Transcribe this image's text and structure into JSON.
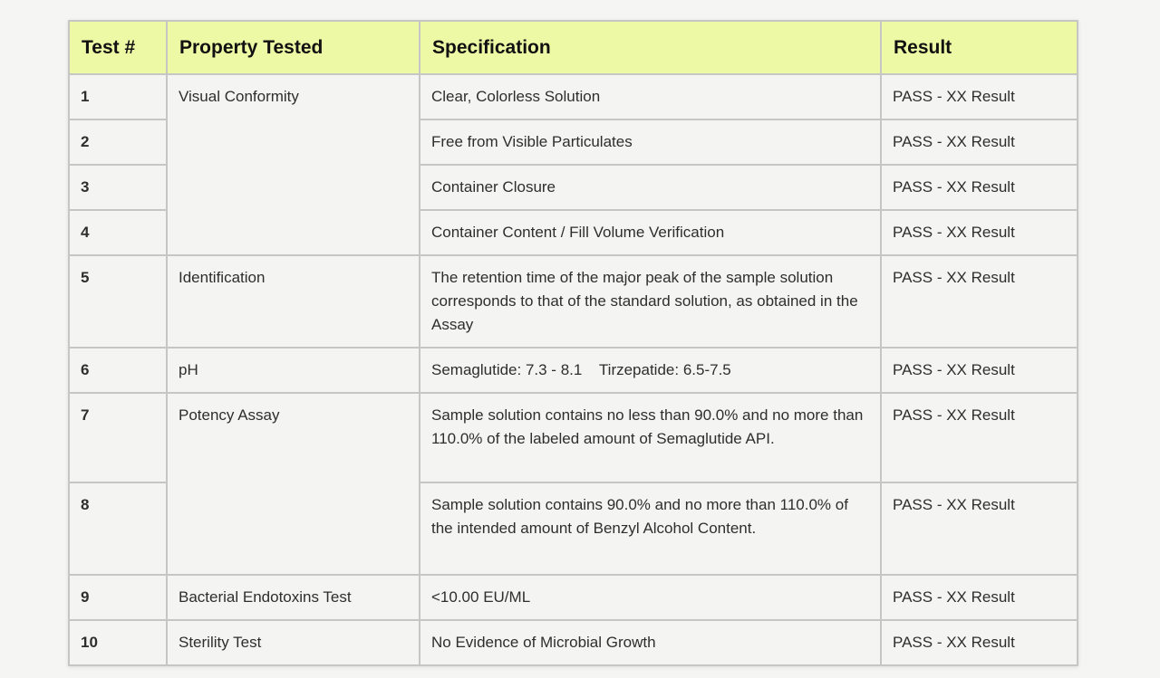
{
  "colors": {
    "page_background": "#f5f5f4",
    "header_background": "#edf9a4",
    "cell_background": "#f4f4f2",
    "border": "#c6c6c4",
    "body_text": "#2e2e2e"
  },
  "table": {
    "columns": {
      "test_no": "Test #",
      "property": "Property Tested",
      "spec": "Specification",
      "result": "Result"
    },
    "rows": [
      {
        "num": "1",
        "property": "Visual Conformity",
        "spec": "Clear, Colorless Solution",
        "result": "PASS - XX Result"
      },
      {
        "num": "2",
        "spec": "Free from Visible Particulates",
        "result": "PASS - XX Result"
      },
      {
        "num": "3",
        "spec": "Container Closure",
        "result": "PASS - XX Result"
      },
      {
        "num": "4",
        "spec": "Container Content / Fill Volume Verification",
        "result": "PASS - XX Result"
      },
      {
        "num": "5",
        "property": "Identification",
        "spec": "The retention time of the major peak of the sample solution corresponds to that of the standard solution, as obtained in the Assay",
        "result": "PASS - XX Result"
      },
      {
        "num": "6",
        "property": "pH",
        "spec": "Semaglutide: 7.3 - 8.1    Tirzepatide: 6.5-7.5",
        "result": "PASS - XX Result"
      },
      {
        "num": "7",
        "property": "Potency Assay",
        "spec": "Sample solution contains no less than 90.0% and no more than 110.0% of the labeled amount of Semaglutide API.",
        "result": "PASS - XX Result"
      },
      {
        "num": "8",
        "spec": "Sample solution contains 90.0% and no more than 110.0% of the intended amount of Benzyl Alcohol Content.",
        "result": "PASS - XX Result"
      },
      {
        "num": "9",
        "property": "Bacterial Endotoxins Test",
        "spec": "<10.00 EU/ML",
        "result": "PASS - XX Result"
      },
      {
        "num": "10",
        "property": "Sterility Test",
        "spec": "No Evidence of Microbial Growth",
        "result": "PASS - XX Result"
      }
    ]
  }
}
